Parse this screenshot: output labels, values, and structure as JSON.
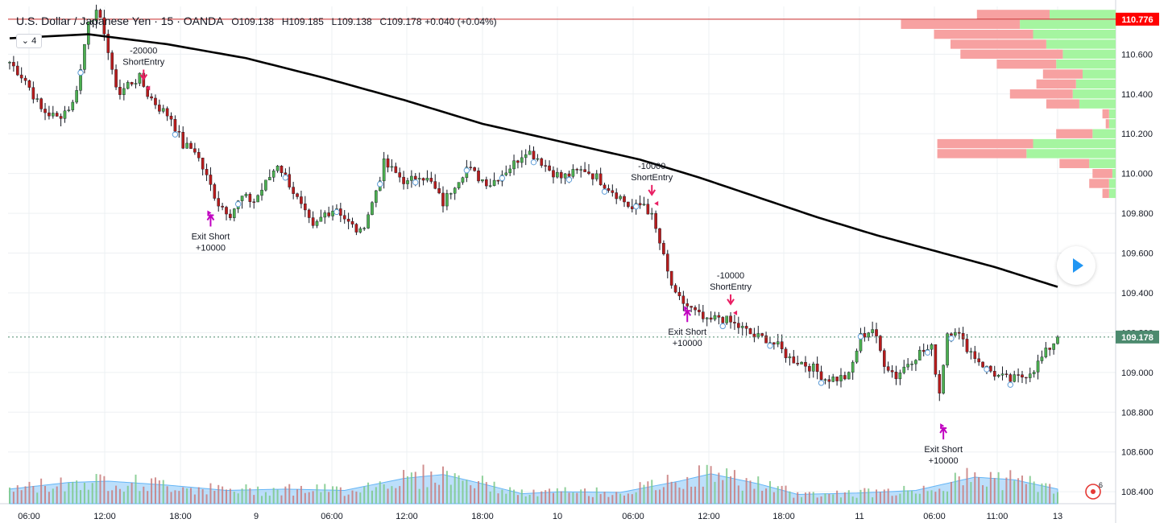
{
  "header": {
    "symbol": "U.S. Dollar / Japanese Yen · 15 · OANDA",
    "open": "O109.138",
    "high": "H109.185",
    "low": "L109.138",
    "close": "C109.178",
    "change": "+0.040 (+0.04%)"
  },
  "indicators_toggle": {
    "label": "4"
  },
  "colors": {
    "up": "#26a69a",
    "down": "#ef5350",
    "wick": "#131722",
    "candle_up_body": "#4caf50",
    "candle_down_body": "#b71c1c",
    "ma": "#000000",
    "volume_ma_fill": "#90caf9",
    "vp_up": "#a5f5a0",
    "vp_down": "#f7a1a1",
    "high_line": "#c62828",
    "last_line": "#4c8a6e",
    "marker_entry": "#e91e63",
    "marker_exit": "#c000c0"
  },
  "chart_data": {
    "type": "candlestick",
    "instrument": "U.S. Dollar / Japanese Yen",
    "timeframe": "15",
    "ylim": [
      108.34,
      110.84
    ],
    "y_ticks": [
      "110.600",
      "110.400",
      "110.200",
      "110.000",
      "109.800",
      "109.600",
      "109.400",
      "109.200",
      "109.000",
      "108.800",
      "108.600",
      "108.400"
    ],
    "x_ticks": [
      "06:00",
      "12:00",
      "18:00",
      "9",
      "06:00",
      "12:00",
      "18:00",
      "10",
      "06:00",
      "12:00",
      "18:00",
      "11",
      "06:00",
      "11:00",
      "13"
    ],
    "high_line_price": "110.776",
    "last_price": "109.178",
    "price_anchors": [
      [
        0,
        110.56
      ],
      [
        4,
        110.47
      ],
      [
        8,
        110.32
      ],
      [
        12,
        110.28
      ],
      [
        16,
        110.35
      ],
      [
        18,
        110.52
      ],
      [
        20,
        110.78
      ],
      [
        22,
        110.8
      ],
      [
        24,
        110.72
      ],
      [
        26,
        110.5
      ],
      [
        28,
        110.4
      ],
      [
        30,
        110.45
      ],
      [
        33,
        110.48
      ],
      [
        35,
        110.4
      ],
      [
        38,
        110.33
      ],
      [
        41,
        110.28
      ],
      [
        44,
        110.14
      ],
      [
        47,
        110.12
      ],
      [
        50,
        109.98
      ],
      [
        53,
        109.85
      ],
      [
        56,
        109.8
      ],
      [
        59,
        109.88
      ],
      [
        62,
        109.86
      ],
      [
        65,
        109.95
      ],
      [
        68,
        110.05
      ],
      [
        71,
        109.95
      ],
      [
        74,
        109.83
      ],
      [
        77,
        109.72
      ],
      [
        80,
        109.8
      ],
      [
        83,
        109.83
      ],
      [
        86,
        109.75
      ],
      [
        89,
        109.7
      ],
      [
        92,
        109.85
      ],
      [
        95,
        110.05
      ],
      [
        98,
        110.0
      ],
      [
        101,
        109.95
      ],
      [
        104,
        110.0
      ],
      [
        107,
        109.95
      ],
      [
        110,
        109.85
      ],
      [
        113,
        109.95
      ],
      [
        116,
        110.03
      ],
      [
        119,
        109.98
      ],
      [
        122,
        109.95
      ],
      [
        125,
        110.0
      ],
      [
        128,
        110.05
      ],
      [
        131,
        110.12
      ],
      [
        134,
        110.08
      ],
      [
        137,
        110.02
      ],
      [
        140,
        109.98
      ],
      [
        143,
        110.0
      ],
      [
        146,
        110.02
      ],
      [
        149,
        109.98
      ],
      [
        152,
        109.93
      ],
      [
        155,
        109.88
      ],
      [
        158,
        109.82
      ],
      [
        161,
        109.85
      ],
      [
        163,
        109.78
      ],
      [
        165,
        109.65
      ],
      [
        167,
        109.5
      ],
      [
        169,
        109.38
      ],
      [
        171,
        109.35
      ],
      [
        174,
        109.3
      ],
      [
        177,
        109.25
      ],
      [
        180,
        109.28
      ],
      [
        183,
        109.25
      ],
      [
        186,
        109.22
      ],
      [
        189,
        109.18
      ],
      [
        192,
        109.17
      ],
      [
        195,
        109.13
      ],
      [
        198,
        109.07
      ],
      [
        201,
        109.05
      ],
      [
        204,
        109.02
      ],
      [
        207,
        108.97
      ],
      [
        210,
        108.97
      ],
      [
        213,
        108.98
      ],
      [
        216,
        109.18
      ],
      [
        219,
        109.22
      ],
      [
        222,
        109.05
      ],
      [
        225,
        108.98
      ],
      [
        228,
        109.05
      ],
      [
        231,
        109.1
      ],
      [
        234,
        109.12
      ],
      [
        236,
        108.9
      ],
      [
        238,
        109.2
      ],
      [
        240,
        109.22
      ],
      [
        242,
        109.15
      ],
      [
        245,
        109.08
      ],
      [
        248,
        109.02
      ],
      [
        251,
        108.98
      ],
      [
        254,
        108.96
      ],
      [
        257,
        108.98
      ],
      [
        260,
        109.02
      ],
      [
        263,
        109.1
      ],
      [
        266,
        109.178
      ]
    ],
    "moving_average": {
      "name": "",
      "points": [
        [
          0,
          110.68
        ],
        [
          20,
          110.7
        ],
        [
          40,
          110.65
        ],
        [
          60,
          110.58
        ],
        [
          80,
          110.48
        ],
        [
          100,
          110.37
        ],
        [
          120,
          110.25
        ],
        [
          140,
          110.16
        ],
        [
          160,
          110.07
        ],
        [
          175,
          109.98
        ],
        [
          190,
          109.88
        ],
        [
          205,
          109.78
        ],
        [
          220,
          109.69
        ],
        [
          235,
          109.61
        ],
        [
          250,
          109.53
        ],
        [
          266,
          109.43
        ]
      ]
    },
    "volume": {
      "max": 1.0,
      "ma_anchors": [
        [
          0,
          0.22
        ],
        [
          15,
          0.32
        ],
        [
          25,
          0.34
        ],
        [
          40,
          0.28
        ],
        [
          55,
          0.2
        ],
        [
          70,
          0.22
        ],
        [
          85,
          0.2
        ],
        [
          100,
          0.38
        ],
        [
          110,
          0.44
        ],
        [
          120,
          0.3
        ],
        [
          130,
          0.15
        ],
        [
          140,
          0.18
        ],
        [
          155,
          0.17
        ],
        [
          170,
          0.34
        ],
        [
          178,
          0.45
        ],
        [
          190,
          0.3
        ],
        [
          200,
          0.14
        ],
        [
          215,
          0.16
        ],
        [
          230,
          0.2
        ],
        [
          245,
          0.4
        ],
        [
          255,
          0.36
        ],
        [
          266,
          0.22
        ]
      ]
    },
    "volume_profile": [
      {
        "price": 110.8,
        "up": 0.4,
        "down": 0.44
      },
      {
        "price": 110.75,
        "up": 0.58,
        "down": 0.72
      },
      {
        "price": 110.7,
        "up": 0.5,
        "down": 0.6
      },
      {
        "price": 110.65,
        "up": 0.42,
        "down": 0.58
      },
      {
        "price": 110.6,
        "up": 0.32,
        "down": 0.62
      },
      {
        "price": 110.55,
        "up": 0.36,
        "down": 0.36
      },
      {
        "price": 110.5,
        "up": 0.2,
        "down": 0.24
      },
      {
        "price": 110.45,
        "up": 0.24,
        "down": 0.24
      },
      {
        "price": 110.4,
        "up": 0.26,
        "down": 0.38
      },
      {
        "price": 110.35,
        "up": 0.22,
        "down": 0.2
      },
      {
        "price": 110.3,
        "up": 0.04,
        "down": 0.04
      },
      {
        "price": 110.25,
        "up": 0.04,
        "down": 0.02
      },
      {
        "price": 110.2,
        "up": 0.14,
        "down": 0.22
      },
      {
        "price": 110.15,
        "up": 0.5,
        "down": 0.58
      },
      {
        "price": 110.1,
        "up": 0.54,
        "down": 0.54
      },
      {
        "price": 110.05,
        "up": 0.16,
        "down": 0.18
      },
      {
        "price": 110.0,
        "up": 0.02,
        "down": 0.12
      },
      {
        "price": 109.95,
        "up": 0.04,
        "down": 0.12
      },
      {
        "price": 109.9,
        "up": 0.04,
        "down": 0.04
      }
    ],
    "trades": [
      {
        "type": "short_entry",
        "bar": 34,
        "price": 110.49,
        "line1": "-20000",
        "line2": "ShortEntry"
      },
      {
        "type": "exit_short",
        "bar": 51,
        "price": 109.79,
        "line1": "Exit Short",
        "line2": "+10000"
      },
      {
        "type": "short_entry",
        "bar": 163,
        "price": 109.91,
        "line1": "-10000",
        "line2": "ShortEntry"
      },
      {
        "type": "exit_short",
        "bar": 172,
        "price": 109.31,
        "line1": "Exit Short",
        "line2": "+10000"
      },
      {
        "type": "short_entry",
        "bar": 183,
        "price": 109.36,
        "line1": "-10000",
        "line2": "ShortEntry"
      },
      {
        "type": "exit_short",
        "bar": 237,
        "price": 108.72,
        "line1": "Exit Short",
        "line2": "+10000"
      }
    ]
  },
  "alerts": {
    "count": "6"
  }
}
